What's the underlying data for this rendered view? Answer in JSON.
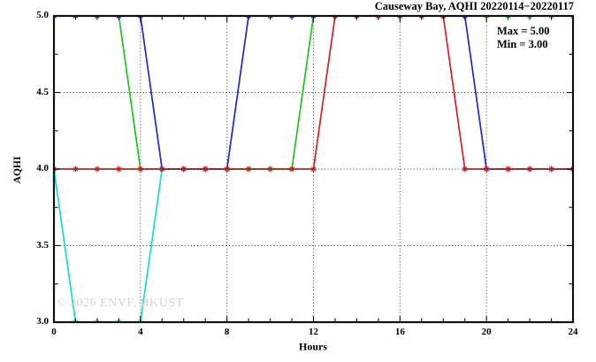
{
  "chart_data": {
    "type": "line",
    "title": "Causeway Bay, AQHI 20220114−20220117",
    "xlabel": "Hours",
    "ylabel": "AQHI",
    "xlim": [
      0,
      24
    ],
    "ylim": [
      3.0,
      5.0
    ],
    "xticks": [
      0,
      4,
      8,
      12,
      16,
      20,
      24
    ],
    "yticks": [
      3.0,
      3.5,
      4.0,
      4.5,
      5.0
    ],
    "x_minor_step": 1,
    "y_minor_step": 0.25,
    "grid": {
      "vertical": [
        4,
        8,
        12,
        16,
        20
      ],
      "horizontal_under": [
        3.5,
        4.5
      ],
      "horizontal_over": [
        4.0
      ]
    },
    "legend": "none",
    "annotations": [
      {
        "label": "Max = 5.00"
      },
      {
        "label": "Min = 3.00"
      }
    ],
    "watermark": "© 2026 ENVF, HKUST",
    "marker": "asterisk",
    "series": [
      {
        "name": "aqhi-cyan-day",
        "color": "#16d9d9",
        "x": [
          0,
          1,
          2,
          3,
          4,
          5
        ],
        "values": [
          4,
          3,
          3,
          3,
          3,
          4
        ]
      },
      {
        "name": "aqhi-green-day",
        "color": "#1dc41d",
        "x": [
          0,
          1,
          2,
          3,
          4,
          5,
          6,
          7,
          8,
          9,
          10,
          11,
          12,
          13,
          14,
          15,
          16,
          17,
          18,
          19,
          20,
          21,
          22,
          23,
          24
        ],
        "values": [
          5,
          5,
          5,
          5,
          4,
          4,
          4,
          4,
          4,
          4,
          4,
          4,
          5,
          5,
          5,
          5,
          5,
          5,
          5,
          5,
          5,
          5,
          5,
          5,
          5
        ]
      },
      {
        "name": "aqhi-blue-day",
        "color": "#2424cd",
        "x": [
          0,
          1,
          2,
          3,
          4,
          5,
          6,
          7,
          8,
          9,
          10,
          11,
          12,
          13,
          14,
          15,
          16,
          17,
          18,
          19,
          20,
          21,
          22,
          23,
          24
        ],
        "values": [
          5,
          5,
          5,
          5,
          5,
          4,
          4,
          4,
          4,
          5,
          5,
          5,
          5,
          5,
          5,
          5,
          5,
          5,
          5,
          5,
          4,
          4,
          4,
          4,
          4
        ]
      },
      {
        "name": "aqhi-red-day",
        "color": "#cd2222",
        "x": [
          0,
          1,
          2,
          3,
          4,
          5,
          6,
          7,
          8,
          9,
          10,
          11,
          12,
          13,
          14,
          15,
          16,
          17,
          18,
          19,
          20,
          21,
          22,
          23,
          24
        ],
        "values": [
          4,
          4,
          4,
          4,
          4,
          4,
          4,
          4,
          4,
          4,
          4,
          4,
          4,
          5,
          5,
          5,
          5,
          5,
          5,
          4,
          4,
          4,
          4,
          4,
          4
        ]
      }
    ]
  }
}
